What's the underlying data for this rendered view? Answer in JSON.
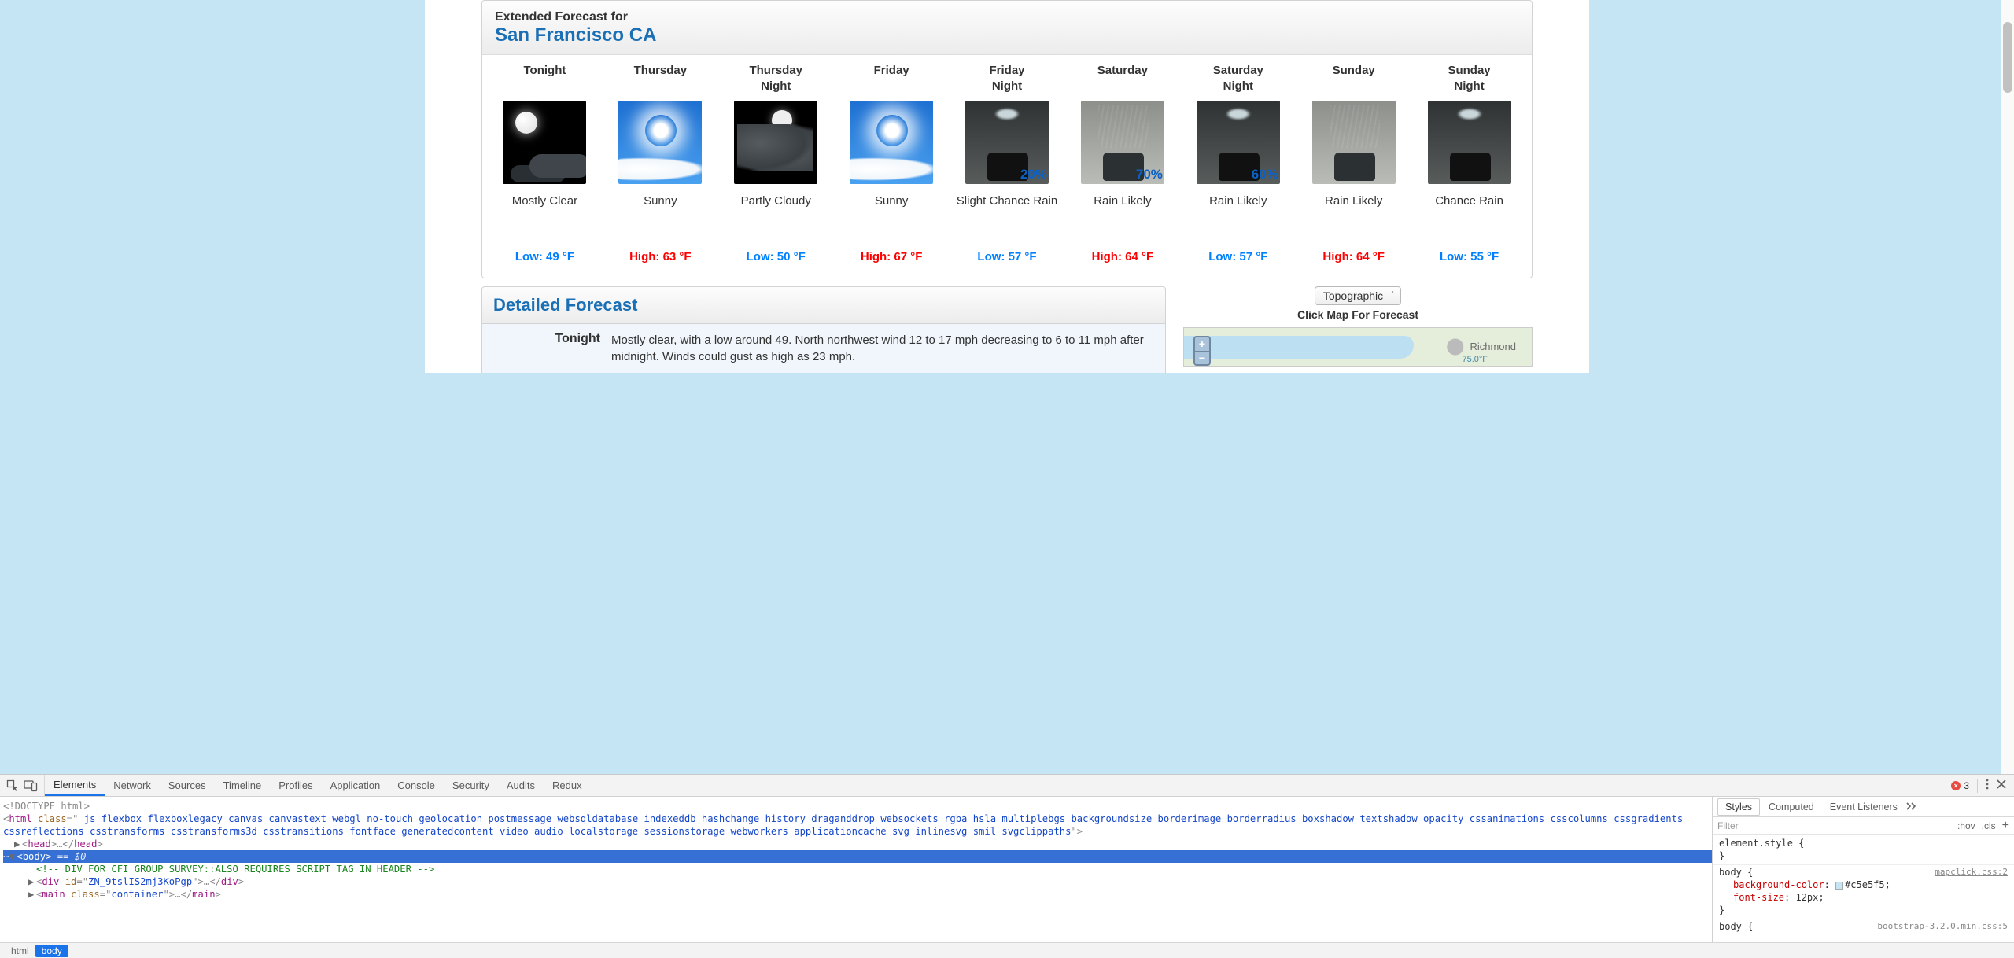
{
  "page": {
    "background_color": "#c5e5f5"
  },
  "forecast": {
    "title_small": "Extended Forecast for",
    "location": "San Francisco CA",
    "periods": [
      {
        "name": "Tonight",
        "name2": "",
        "icon": "night-clear",
        "pct": "",
        "desc": "Mostly Clear",
        "temp_label": "Low: 49 °F",
        "temp_type": "low"
      },
      {
        "name": "Thursday",
        "name2": "",
        "icon": "sunny",
        "pct": "",
        "desc": "Sunny",
        "temp_label": "High: 63 °F",
        "temp_type": "high"
      },
      {
        "name": "Thursday",
        "name2": "Night",
        "icon": "partly-cloudy-night",
        "pct": "",
        "desc": "Partly Cloudy",
        "temp_label": "Low: 50 °F",
        "temp_type": "low"
      },
      {
        "name": "Friday",
        "name2": "",
        "icon": "sunny",
        "pct": "",
        "desc": "Sunny",
        "temp_label": "High: 67 °F",
        "temp_type": "high"
      },
      {
        "name": "Friday",
        "name2": "Night",
        "icon": "rain-night",
        "pct": "20%",
        "desc": "Slight Chance Rain",
        "temp_label": "Low: 57 °F",
        "temp_type": "low"
      },
      {
        "name": "Saturday",
        "name2": "",
        "icon": "rain-day",
        "pct": "70%",
        "desc": "Rain Likely",
        "temp_label": "High: 64 °F",
        "temp_type": "high"
      },
      {
        "name": "Saturday",
        "name2": "Night",
        "icon": "rain-night",
        "pct": "60%",
        "desc": "Rain Likely",
        "temp_label": "Low: 57 °F",
        "temp_type": "low"
      },
      {
        "name": "Sunday",
        "name2": "",
        "icon": "rain-day",
        "pct": "",
        "desc": "Rain Likely",
        "temp_label": "High: 64 °F",
        "temp_type": "high"
      },
      {
        "name": "Sunday",
        "name2": "Night",
        "icon": "rain-night",
        "pct": "",
        "desc": "Chance Rain",
        "temp_label": "Low: 55 °F",
        "temp_type": "low"
      }
    ]
  },
  "detailed": {
    "heading": "Detailed Forecast",
    "row_label": "Tonight",
    "row_text": "Mostly clear, with a low around 49. North northwest wind 12 to 17 mph decreasing to 6 to 11 mph after midnight. Winds could gust as high as 23 mph."
  },
  "map": {
    "select_value": "Topographic",
    "caption": "Click Map For Forecast",
    "label_richmond": "Richmond",
    "label_75": "75.0°F",
    "zoom_plus": "+",
    "zoom_minus": "−"
  },
  "devtools": {
    "tabs": [
      "Elements",
      "Network",
      "Sources",
      "Timeline",
      "Profiles",
      "Application",
      "Console",
      "Security",
      "Audits",
      "Redux"
    ],
    "active_tab": "Elements",
    "error_count": "3",
    "breadcrumbs": [
      "html",
      "body"
    ],
    "active_breadcrumb": "body",
    "dom": {
      "doctype": "<!DOCTYPE html>",
      "html_open_pre": "<html class=\"",
      "html_classes": " js flexbox flexboxlegacy canvas canvastext webgl no-touch geolocation postmessage websqldatabase indexeddb hashchange history draganddrop websockets rgba hsla multiplebgs backgroundsize borderimage borderradius boxshadow textshadow opacity cssanimations csscolumns cssgradients cssreflections csstransforms csstransforms3d csstransitions fontface generatedcontent video audio localstorage sessionstorage webworkers applicationcache svg inlinesvg smil svgclippaths",
      "html_open_post": "\">",
      "head": {
        "open": "<head>",
        "mid": "…",
        "close": "</head>"
      },
      "body_sel": {
        "open": "<body>",
        "eq": " == $0"
      },
      "comment": "<!-- DIV FOR CFI GROUP SURVEY::ALSO REQUIRES SCRIPT TAG IN HEADER -->",
      "div_line": {
        "open": "<div id=\"",
        "id": "ZN_9tslIS2mj3KoPgp",
        "mid": "\">",
        "ell": "…",
        "close": "</div>"
      },
      "main_line": {
        "open": "<main class=\"",
        "cls": "container",
        "mid": "\">",
        "ell": "…",
        "close": "</main>"
      }
    },
    "styles": {
      "tabs": [
        "Styles",
        "Computed",
        "Event Listeners"
      ],
      "active": "Styles",
      "filter_placeholder": "Filter",
      "hov": ":hov",
      "cls": ".cls",
      "rule1_sel": "element.style",
      "rule2_sel": "body",
      "rule2_src": "mapclick.css:2",
      "rule2_p1_name": "background-color",
      "rule2_p1_val": "#c5e5f5",
      "rule2_p2_name": "font-size",
      "rule2_p2_val": "12px",
      "rule3_sel": "body",
      "rule3_src": "bootstrap-3.2.0.min.css:5"
    }
  }
}
